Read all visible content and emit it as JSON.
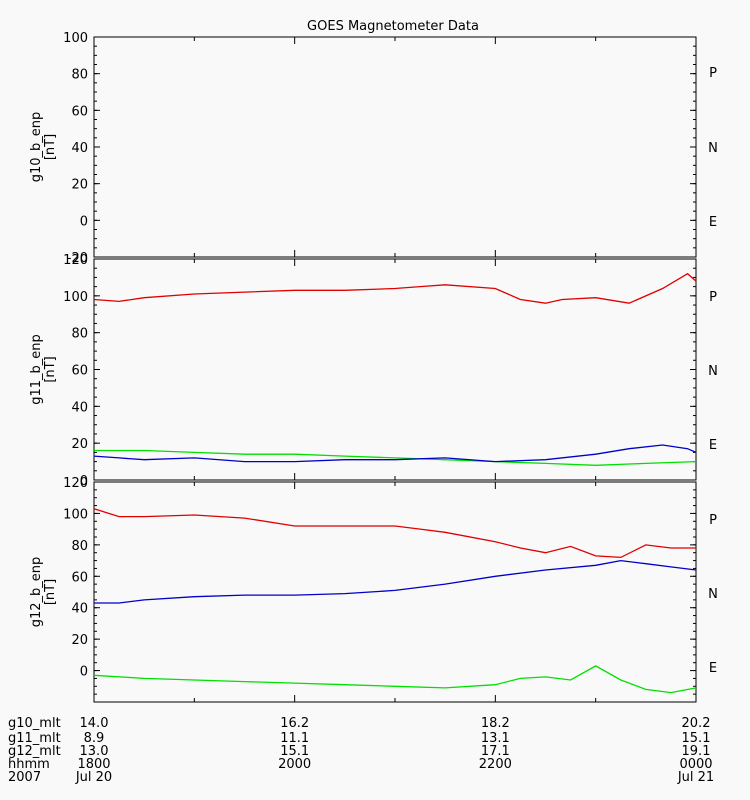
{
  "title": "GOES Magnetometer Data",
  "colors": {
    "P": "#e00000",
    "N": "#00e000",
    "E": "#0000c8",
    "axis": "#000000"
  },
  "chart_data": [
    {
      "type": "line",
      "ylabel": "g10_b_enp",
      "unit": "[nT]",
      "yticks": [
        -20,
        0,
        20,
        40,
        60,
        80,
        100
      ],
      "ylim": [
        -20,
        100
      ],
      "grid": false,
      "legend": [
        "P",
        "N",
        "E"
      ],
      "series": []
    },
    {
      "type": "line",
      "ylabel": "g11_b_enp",
      "unit": "[nT]",
      "yticks": [
        0,
        20,
        40,
        60,
        80,
        100,
        120
      ],
      "ylim": [
        0,
        120
      ],
      "grid": false,
      "legend": [
        "P",
        "N",
        "E"
      ],
      "series": [
        {
          "name": "P",
          "color": "#e00000",
          "x": [
            1800,
            1815,
            1830,
            1900,
            1930,
            2000,
            2030,
            2100,
            2115,
            2130,
            2200,
            2215,
            2230,
            2240,
            2300,
            2320,
            2340,
            2355,
            0
          ],
          "values": [
            98,
            97,
            99,
            101,
            102,
            103,
            103,
            104,
            105,
            106,
            104,
            98,
            96,
            98,
            99,
            96,
            104,
            112,
            108
          ]
        },
        {
          "name": "N",
          "color": "#00e000",
          "x": [
            1800,
            1830,
            1900,
            1930,
            2000,
            2030,
            2100,
            2130,
            2200,
            2230,
            2300,
            2330,
            0
          ],
          "values": [
            16,
            16,
            15,
            14,
            14,
            13,
            12,
            11,
            10,
            9,
            8,
            9,
            10
          ]
        },
        {
          "name": "E",
          "color": "#0000c8",
          "x": [
            1800,
            1815,
            1830,
            1900,
            1930,
            2000,
            2030,
            2100,
            2130,
            2200,
            2230,
            2300,
            2320,
            2340,
            2355,
            0
          ],
          "values": [
            13,
            12,
            11,
            12,
            10,
            10,
            11,
            11,
            12,
            10,
            11,
            14,
            17,
            19,
            17,
            15
          ]
        }
      ]
    },
    {
      "type": "line",
      "ylabel": "g12_b_enp",
      "unit": "[nT]",
      "yticks": [
        0,
        20,
        40,
        60,
        80,
        100,
        120
      ],
      "ylim": [
        -20,
        120
      ],
      "grid": false,
      "legend": [
        "P",
        "N",
        "E"
      ],
      "series": [
        {
          "name": "P",
          "color": "#e00000",
          "x": [
            1800,
            1815,
            1830,
            1900,
            1930,
            2000,
            2030,
            2100,
            2115,
            2130,
            2200,
            2215,
            2230,
            2245,
            2300,
            2315,
            2330,
            2345,
            0
          ],
          "values": [
            103,
            98,
            98,
            99,
            97,
            92,
            92,
            92,
            90,
            88,
            82,
            78,
            75,
            79,
            73,
            72,
            80,
            78,
            78
          ]
        },
        {
          "name": "E",
          "color": "#0000c8",
          "x": [
            1800,
            1815,
            1830,
            1900,
            1930,
            2000,
            2030,
            2100,
            2130,
            2200,
            2230,
            2300,
            2315,
            2330,
            2345,
            0
          ],
          "values": [
            43,
            43,
            45,
            47,
            48,
            48,
            49,
            51,
            55,
            60,
            64,
            67,
            70,
            68,
            66,
            64
          ]
        },
        {
          "name": "N",
          "color": "#00e000",
          "x": [
            1800,
            1830,
            1900,
            1930,
            2000,
            2030,
            2100,
            2130,
            2200,
            2215,
            2230,
            2245,
            2300,
            2315,
            2330,
            2345,
            0
          ],
          "values": [
            -3,
            -5,
            -6,
            -7,
            -8,
            -9,
            -10,
            -11,
            -9,
            -5,
            -4,
            -6,
            3,
            -6,
            -12,
            -14,
            -11
          ]
        }
      ]
    }
  ],
  "xaxis": {
    "x": [
      1800,
      2000,
      2200,
      0
    ],
    "rows": [
      {
        "label": "g10_mlt",
        "values": [
          "14.0",
          "16.2",
          "18.2",
          "20.2"
        ]
      },
      {
        "label": "g11_mlt",
        "values": [
          "8.9",
          "11.1",
          "13.1",
          "15.1"
        ]
      },
      {
        "label": "g12_mlt",
        "values": [
          "13.0",
          "15.1",
          "17.1",
          "19.1"
        ]
      },
      {
        "label": "hhmm",
        "values": [
          "1800",
          "2000",
          "2200",
          "0000"
        ]
      },
      {
        "label": "2007",
        "values": [
          "Jul 20",
          "",
          "",
          "Jul 21"
        ]
      }
    ]
  }
}
